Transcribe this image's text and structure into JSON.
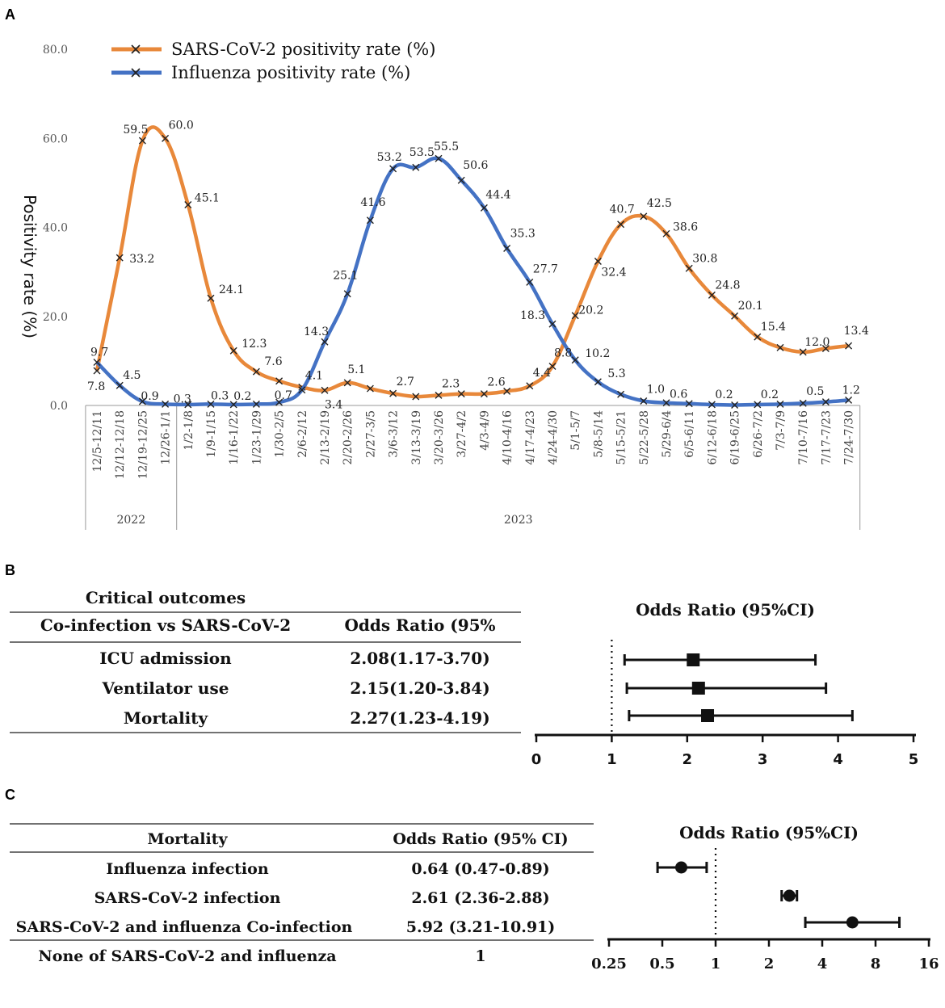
{
  "panels": {
    "a": "A",
    "b": "B",
    "c": "C"
  },
  "chart_data": [
    {
      "type": "line",
      "panel": "A",
      "ylabel": "Positivity rate (%)",
      "ylim": [
        0,
        80
      ],
      "yticks": [
        "0.0",
        "20.0",
        "40.0",
        "60.0",
        "80.0"
      ],
      "categories": [
        "12/5-12/11",
        "12/12-12/18",
        "12/19-12/25",
        "12/26-1/1",
        "1/2-1/8",
        "1/9-1/15",
        "1/16-1/22",
        "1/23-1/29",
        "1/30-2/5",
        "2/6-2/12",
        "2/13-2/19",
        "2/20-2/26",
        "2/27-3/5",
        "3/6-3/12",
        "3/13-3/19",
        "3/20-3/26",
        "3/27-4/2",
        "4/3-4/9",
        "4/10-4/16",
        "4/17-4/23",
        "4/24-4/30",
        "5/1-5/7",
        "5/8-5/14",
        "5/15-5/21",
        "5/22-5/28",
        "5/29-6/4",
        "6/5-6/11",
        "6/12-6/18",
        "6/19-6/25",
        "6/26-7/2",
        "7/3-7/9",
        "7/10-7/16",
        "7/17-7/23",
        "7/24-7/30"
      ],
      "groups": [
        {
          "label": "2022",
          "count": 4
        },
        {
          "label": "2023",
          "count": 30
        }
      ],
      "series": [
        {
          "name": "SARS-CoV-2 positivity rate (%)",
          "color": "#E8883A",
          "values": [
            7.8,
            33.2,
            59.5,
            60.0,
            45.1,
            24.1,
            12.3,
            7.6,
            5.5,
            4.1,
            3.4,
            5.1,
            3.8,
            2.7,
            2.0,
            2.3,
            2.6,
            2.6,
            3.2,
            4.4,
            8.8,
            20.2,
            32.4,
            40.7,
            42.5,
            38.6,
            30.8,
            24.8,
            20.1,
            15.4,
            13.0,
            12.0,
            12.8,
            13.4
          ],
          "labels": [
            "7.8",
            "33.2",
            "59.5",
            "60.0",
            "45.1",
            "24.1",
            "12.3",
            "7.6",
            "",
            "4.1",
            "3.4",
            "5.1",
            "",
            "2.7",
            "",
            "2.3",
            "",
            "2.6",
            "",
            "4.4",
            "8.8",
            "20.2",
            "32.4",
            "40.7",
            "42.5",
            "38.6",
            "30.8",
            "24.8",
            "20.1",
            "15.4",
            "",
            "12.0",
            "",
            "13.4"
          ]
        },
        {
          "name": "Influenza positivity rate (%)",
          "color": "#4472C4",
          "values": [
            9.7,
            4.5,
            0.9,
            0.3,
            0.2,
            0.3,
            0.2,
            0.3,
            0.7,
            3.5,
            14.3,
            25.1,
            41.6,
            53.2,
            53.5,
            55.5,
            50.6,
            44.4,
            35.3,
            27.7,
            18.3,
            10.2,
            5.3,
            2.5,
            1.0,
            0.6,
            0.4,
            0.2,
            0.1,
            0.2,
            0.3,
            0.5,
            0.8,
            1.2
          ],
          "labels": [
            "9.7",
            "4.5",
            "0.9",
            "0.3",
            "",
            "0.3",
            "0.2",
            "",
            "0.7",
            "",
            "14.3",
            "25.1",
            "41.6",
            "53.2",
            "53.5",
            "55.5",
            "50.6",
            "44.4",
            "35.3",
            "27.7",
            "18.3",
            "10.2",
            "5.3",
            "",
            "1.0",
            "0.6",
            "",
            "0.2",
            "",
            "0.2",
            "",
            "0.5",
            "",
            "1.2"
          ]
        }
      ]
    },
    {
      "type": "forest",
      "panel": "B",
      "title": "Odds Ratio (95%CI)",
      "xlim": [
        0,
        5
      ],
      "xticks": [
        "0",
        "1",
        "2",
        "3",
        "4",
        "5"
      ],
      "reference": 1,
      "rows": [
        {
          "label": "ICU admission",
          "or": 2.08,
          "lo": 1.17,
          "hi": 3.7
        },
        {
          "label": "Ventilator use",
          "or": 2.15,
          "lo": 1.2,
          "hi": 3.84
        },
        {
          "label": "Mortality",
          "or": 2.27,
          "lo": 1.23,
          "hi": 4.19
        }
      ]
    },
    {
      "type": "forest",
      "panel": "C",
      "title": "Odds Ratio (95%CI)",
      "scale": "log2",
      "xlim": [
        0.25,
        16
      ],
      "xticks": [
        "0.25",
        "0.5",
        "1",
        "2",
        "4",
        "8",
        "16"
      ],
      "reference": 1,
      "rows": [
        {
          "label": "Influenza infection",
          "or": 0.64,
          "lo": 0.47,
          "hi": 0.89
        },
        {
          "label": "SARS-CoV-2 infection",
          "or": 2.61,
          "lo": 2.36,
          "hi": 2.88
        },
        {
          "label": "SARS-CoV-2 and influenza Co-infection",
          "or": 5.92,
          "lo": 3.21,
          "hi": 10.91
        }
      ]
    }
  ],
  "table_b": {
    "title": "Critical outcomes",
    "header": [
      "Co-infection vs SARS-CoV-2",
      "Odds Ratio (95%"
    ],
    "rows": [
      [
        "ICU admission",
        "2.08(1.17-3.70)"
      ],
      [
        "Ventilator use",
        "2.15(1.20-3.84)"
      ],
      [
        "Mortality",
        "2.27(1.23-4.19)"
      ]
    ]
  },
  "table_c": {
    "header": [
      "Mortality",
      "Odds Ratio (95% CI)"
    ],
    "rows": [
      [
        "Influenza infection",
        "0.64 (0.47-0.89)"
      ],
      [
        "SARS-CoV-2 infection",
        "2.61 (2.36-2.88)"
      ],
      [
        "SARS-CoV-2 and influenza Co-infection",
        "5.92 (3.21-10.91)"
      ],
      [
        "None of SARS-CoV-2 and influenza",
        "1"
      ]
    ]
  }
}
